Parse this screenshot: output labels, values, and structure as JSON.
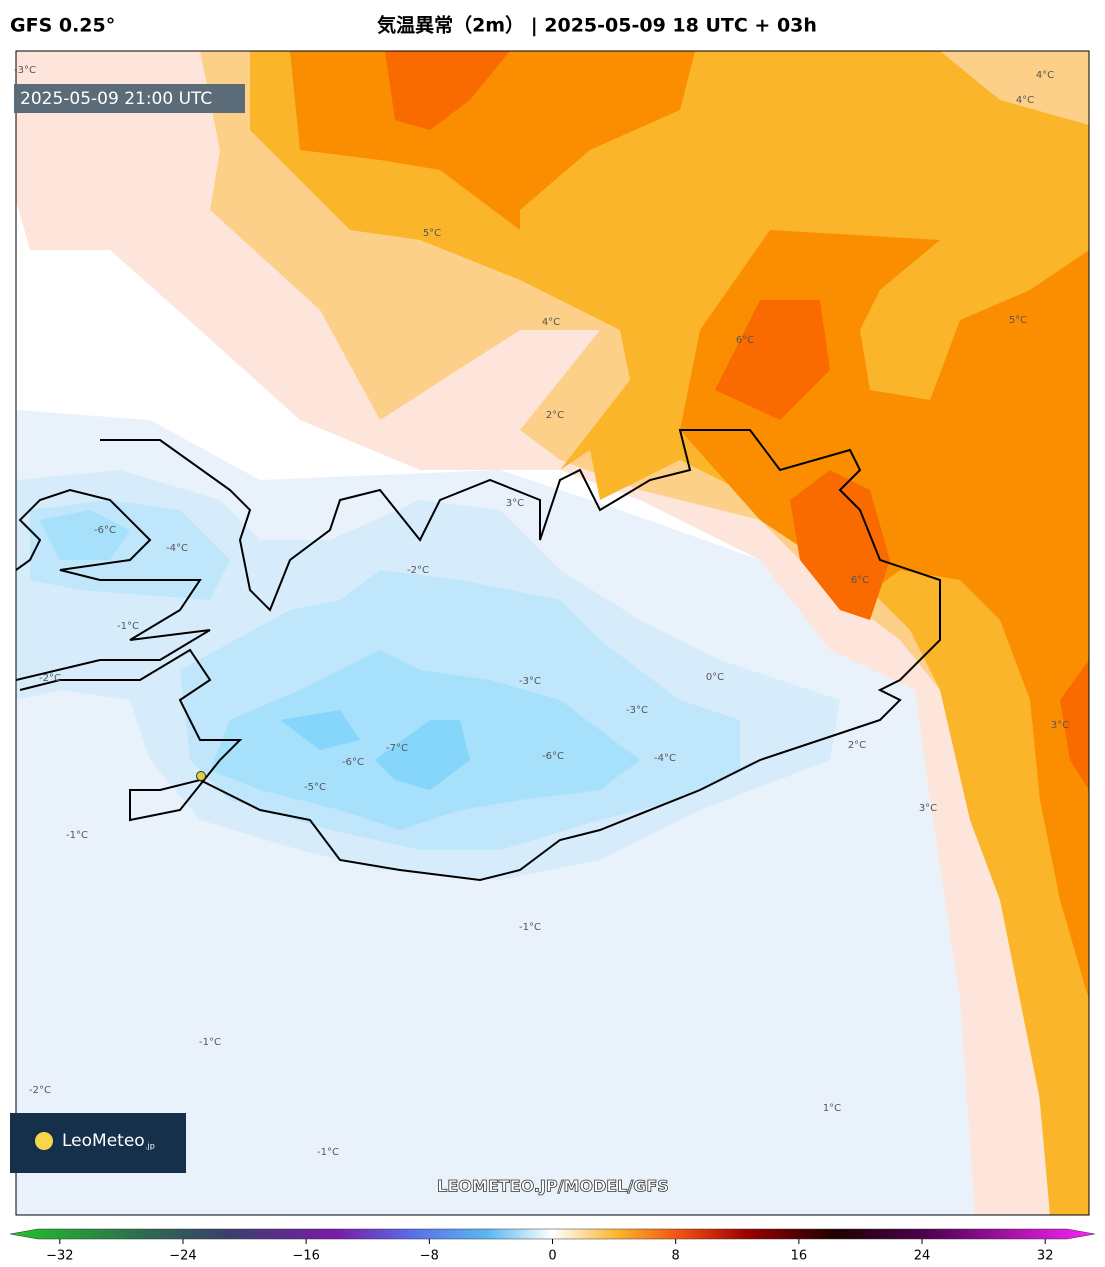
{
  "header": {
    "model": "GFS 0.25°",
    "title": "気温異常（2m） | 2025-05-09 18 UTC + 03h"
  },
  "map": {
    "timestamp": "2025-05-09 21:00 UTC",
    "watermark": "LEOMETEO.JP/MODEL/GFS",
    "logo": {
      "name": "LeoMeteo",
      "suffix": ".jp"
    },
    "contour_labels": [
      "-3°C",
      "4°C",
      "4°C",
      "5°C",
      "4°C",
      "6°C",
      "5°C",
      "2°C",
      "-6°C",
      "-4°C",
      "-2°C",
      "-1°C",
      "-2°C",
      "0°C",
      "-3°C",
      "-3°C",
      "-7°C",
      "-6°C",
      "-6°C",
      "-4°C",
      "-5°C",
      "2°C",
      "3°C",
      "3°C",
      "-1°C",
      "-1°C",
      "-1°C",
      "-2°C",
      "1°C",
      "-1°C",
      "6°C",
      "3°C"
    ]
  },
  "colorbar": {
    "range": [
      -34,
      34
    ],
    "ticks": [
      {
        "value": -32,
        "label": "−32"
      },
      {
        "value": -24,
        "label": "−24"
      },
      {
        "value": -16,
        "label": "−16"
      },
      {
        "value": -8,
        "label": "−8"
      },
      0,
      8,
      16,
      24,
      32
    ]
  }
}
